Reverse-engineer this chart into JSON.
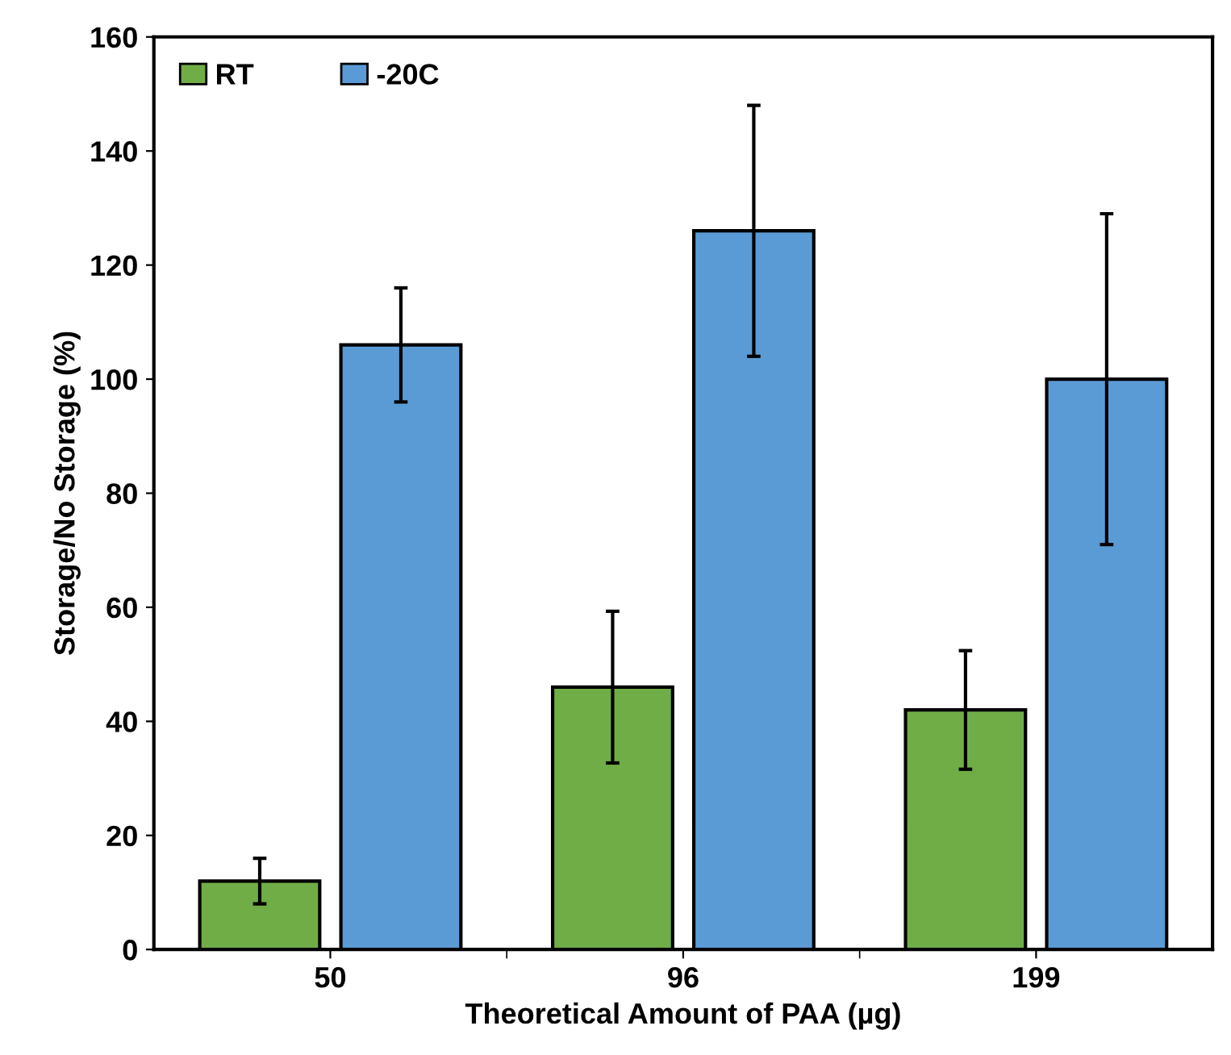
{
  "chart_data": {
    "type": "bar",
    "xlabel": "Theoretical Amount of PAA (µg)",
    "ylabel": "Storage/No Storage (%)",
    "categories": [
      "50",
      "96",
      "199"
    ],
    "series": [
      {
        "name": "RT",
        "color": "#70ad47",
        "values": [
          12,
          46,
          42
        ],
        "errors": [
          4,
          13.3,
          10.4
        ]
      },
      {
        "name": "-20C",
        "color": "#5b9bd5",
        "values": [
          106,
          126,
          100
        ],
        "errors": [
          10,
          22,
          29
        ]
      }
    ],
    "ylim": [
      0,
      160
    ],
    "yticks": [
      0,
      20,
      40,
      60,
      80,
      100,
      120,
      140,
      160
    ],
    "grid": false,
    "legend": "top left"
  }
}
